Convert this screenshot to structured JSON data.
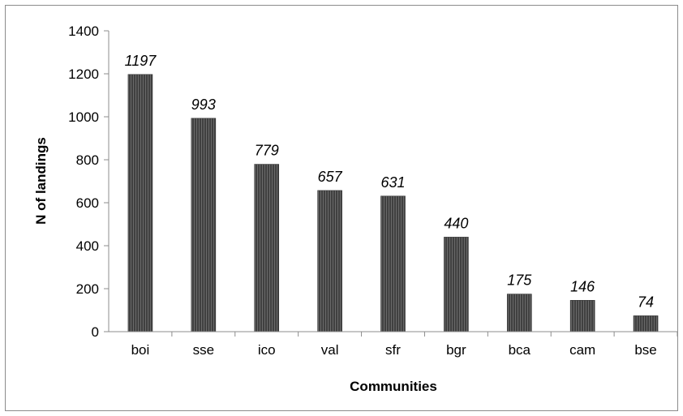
{
  "chart_data": {
    "type": "bar",
    "categories": [
      "boi",
      "sse",
      "ico",
      "val",
      "sfr",
      "bgr",
      "bca",
      "cam",
      "bse"
    ],
    "values": [
      1197,
      993,
      779,
      657,
      631,
      440,
      175,
      146,
      74
    ],
    "data_labels": [
      "1197",
      "993",
      "779",
      "657",
      "631",
      "440",
      "175",
      "146",
      "74"
    ],
    "title": "",
    "xlabel": "Communities",
    "ylabel": "N of landings",
    "ylim": [
      0,
      1400
    ],
    "yticks": [
      0,
      200,
      400,
      600,
      800,
      1000,
      1200,
      1400
    ],
    "grid": false,
    "legend": "none",
    "bar_color": "#404040",
    "bar_stripe_color": "#6a6a6a"
  }
}
